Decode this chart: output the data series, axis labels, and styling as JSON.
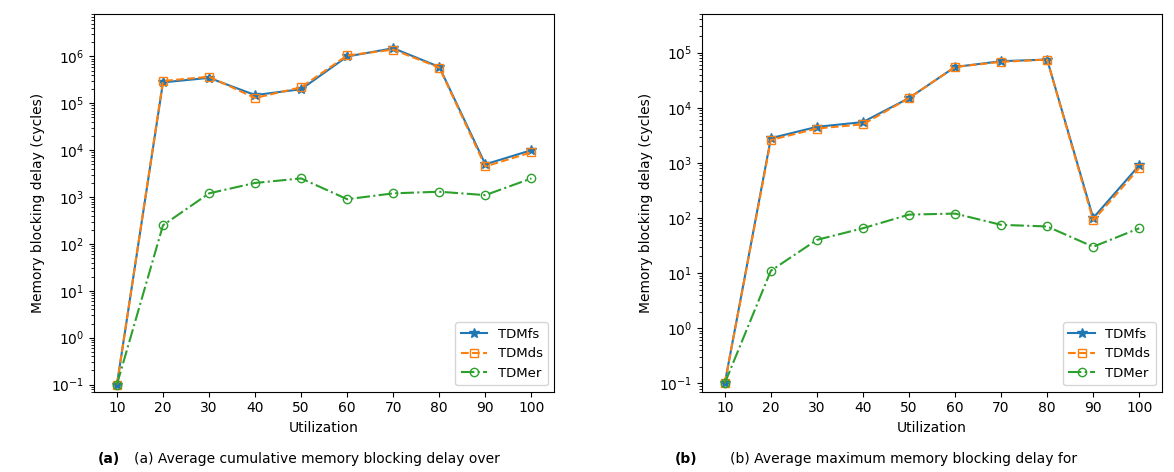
{
  "x": [
    10,
    20,
    30,
    40,
    50,
    60,
    70,
    80,
    90,
    100
  ],
  "left_TDMfs": [
    0.1,
    280000,
    350000,
    150000,
    200000,
    1000000,
    1500000,
    600000,
    5000,
    10000
  ],
  "left_TDMds": [
    0.1,
    300000,
    370000,
    130000,
    220000,
    1050000,
    1400000,
    580000,
    4500,
    9000
  ],
  "left_TDMer": [
    0.1,
    250,
    1200,
    2000,
    2500,
    900,
    1200,
    1300,
    1100,
    2500
  ],
  "right_TDMfs": [
    0.1,
    2800,
    4500,
    5500,
    15000,
    55000,
    70000,
    75000,
    100,
    900
  ],
  "right_TDMds": [
    0.1,
    2600,
    4200,
    5000,
    15000,
    55000,
    68000,
    75000,
    90,
    800
  ],
  "right_TDMer": [
    0.1,
    11,
    40,
    65,
    115,
    120,
    75,
    70,
    30,
    65
  ],
  "left_ylabel": "Memory blocking delay (cycles)",
  "right_ylabel": "Memory blocking delay (cycles)",
  "xlabel": "Utilization",
  "left_ylim": [
    0.07,
    8000000
  ],
  "right_ylim": [
    0.07,
    500000
  ],
  "color_TDMfs": "#1f77b4",
  "color_TDMds": "#ff7f0e",
  "color_TDMer": "#2ca02c",
  "caption_a": "(a) Average cumulative memory blocking delay over",
  "caption_b": "(b) Average maximum memory blocking delay for"
}
